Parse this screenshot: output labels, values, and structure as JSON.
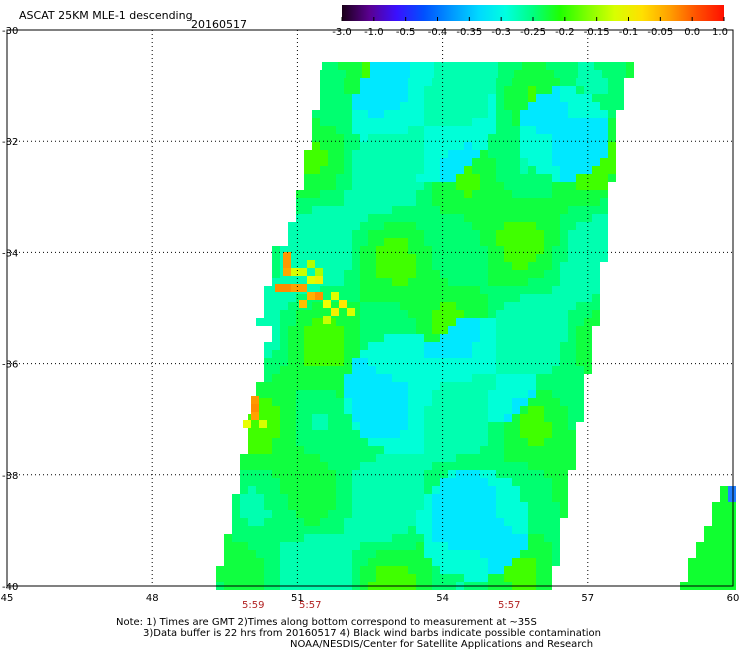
{
  "header": {
    "title": "ASCAT 25KM MLE-1 descending",
    "date": "20160517"
  },
  "colorbar": {
    "labels": [
      "-3.0",
      "-1.0",
      "-0.5",
      "-0.4",
      "-0.35",
      "-0.3",
      "-0.25",
      "-0.2",
      "-0.15",
      "-0.1",
      "-0.05",
      "0.0",
      "1.0"
    ],
    "colors": [
      "#1a0018",
      "#5a0090",
      "#3a10ff",
      "#0050ff",
      "#0096ff",
      "#00d8ff",
      "#00ffe0",
      "#00ff80",
      "#20ff00",
      "#80ff00",
      "#d8ff00",
      "#ffe000",
      "#ffa000",
      "#ff5000",
      "#ff1000"
    ]
  },
  "axes": {
    "y_labels": [
      "-30",
      "-32",
      "-34",
      "-36",
      "-38",
      "-40"
    ],
    "x_labels": [
      "45",
      "48",
      "51",
      "54",
      "57",
      "60"
    ],
    "lat_range": [
      -40,
      -30
    ],
    "lon_range": [
      45,
      60
    ]
  },
  "times": [
    "5:59",
    "5:57",
    "5:57"
  ],
  "notes": {
    "line1": "Note: 1) Times are GMT 2)Times along bottom correspond to measurement at ~35S",
    "line2": "3)Data buffer is 22 hrs from 20160517 4) Black wind barbs indicate possible contamination",
    "line3": "NOAA/NESDIS/Center for Satellite Applications and Research"
  }
}
